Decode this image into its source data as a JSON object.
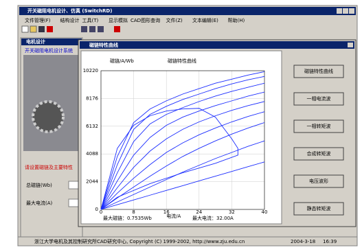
{
  "window": {
    "title": "开关磁阻电机设计、仿真 (SwitchRD)"
  },
  "menu": [
    "文件管理(F)",
    "结构设计",
    "工具(T)",
    "显示模拟",
    "CAD图形查询",
    "文件(Z)",
    "文本编辑(E)",
    "帮助(H)"
  ],
  "panel": {
    "title": "电机设计",
    "header": "开关磁阻电机设计系统",
    "prompt": "请设置磁链及主要特性",
    "fields": [
      "总磁链(Wb)",
      "最大电流(A)"
    ]
  },
  "dialog": {
    "title": "磁链特性曲线",
    "buttons": [
      "磁链特性曲线",
      "一相电流波",
      "一相转矩波",
      "合成转矩波",
      "电压波形",
      "静态转矩波"
    ],
    "info": [
      "最大磁链：0.7535Wb",
      "最大电流：32.00A"
    ]
  },
  "chart_data": {
    "type": "line",
    "title": "磁链特性曲线",
    "y_label": "磁链/A/Wb",
    "x_label": "电流/A",
    "x": [
      0,
      4,
      8,
      12,
      16,
      20,
      24,
      28,
      32,
      36,
      40
    ],
    "xlim": [
      0,
      40
    ],
    "xticks": [
      0,
      8,
      16,
      24,
      32,
      40
    ],
    "ylim": [
      0,
      10220
    ],
    "yticks": [
      0,
      2044,
      4088,
      6132,
      8176,
      10220
    ],
    "grid": true,
    "series": [
      {
        "color": "#1a2cff",
        "values": [
          0,
          3900,
          6400,
          7400,
          8000,
          8500,
          8900,
          9300,
          9600,
          9900,
          10150
        ]
      },
      {
        "color": "#1a2cff",
        "values": [
          0,
          3300,
          5900,
          7000,
          7600,
          8100,
          8500,
          8900,
          9250,
          9550,
          9800
        ]
      },
      {
        "color": "#1a2cff",
        "values": [
          0,
          2700,
          5000,
          6300,
          7000,
          7500,
          7950,
          8350,
          8700,
          9000,
          9300
        ]
      },
      {
        "color": "#1a2cff",
        "values": [
          0,
          2100,
          4000,
          5300,
          6200,
          6800,
          7250,
          7650,
          8000,
          8350,
          8650
        ]
      },
      {
        "color": "#1a2cff",
        "values": [
          0,
          1600,
          3100,
          4300,
          5200,
          5900,
          6450,
          6900,
          7300,
          7650,
          7950
        ]
      },
      {
        "color": "#1a2cff",
        "values": [
          0,
          1200,
          2300,
          3300,
          4200,
          4900,
          5500,
          6000,
          6450,
          6850,
          7200
        ]
      },
      {
        "color": "#1a2cff",
        "values": [
          0,
          850,
          1650,
          2450,
          3200,
          3900,
          4500,
          5050,
          5550,
          6000,
          6400
        ]
      },
      {
        "color": "#1a2cff",
        "values": [
          0,
          550,
          1100,
          1650,
          2200,
          2750,
          3250,
          3750,
          4200,
          4650,
          5050
        ]
      },
      {
        "color": "#1a2cff",
        "values": [
          0,
          350,
          700,
          1050,
          1400,
          1750,
          2100,
          2450,
          2800,
          3150,
          3500
        ]
      },
      {
        "color": "#1a2cff",
        "x": [
          0,
          4,
          8,
          12,
          16,
          20,
          24,
          28,
          32,
          33.5,
          33.5,
          28,
          20,
          12,
          4,
          0
        ],
        "values": [
          0,
          4500,
          6200,
          6900,
          7250,
          7400,
          7450,
          6800,
          5200,
          4500,
          4000,
          3400,
          2700,
          1900,
          900,
          0
        ]
      }
    ]
  },
  "status": [
    "浙江大学电机及其控制研究所CAD研究中心, Copyright (C) 1999-2002, http://www.zju.edu.cn",
    "2004-3-18",
    "16:39"
  ]
}
